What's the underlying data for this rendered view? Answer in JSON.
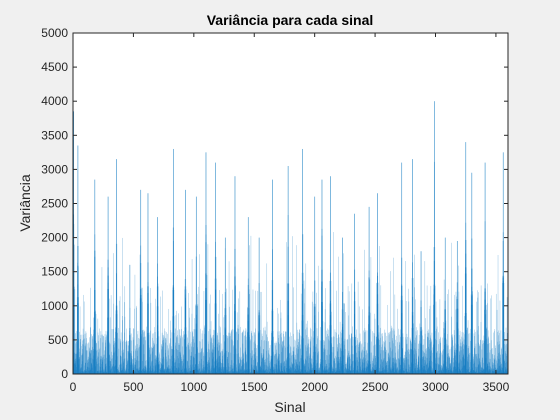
{
  "chart_data": {
    "type": "bar",
    "title": "Variância para cada sinal",
    "xlabel": "Sinal",
    "ylabel": "Variância",
    "xlim": [
      0,
      3600
    ],
    "ylim": [
      0,
      5000
    ],
    "x_ticks": [
      "0",
      "500",
      "1000",
      "1500",
      "2000",
      "2500",
      "3000",
      "3500"
    ],
    "y_ticks": [
      "0",
      "500",
      "1000",
      "1500",
      "2000",
      "2500",
      "3000",
      "3500",
      "4000",
      "4500",
      "5000"
    ],
    "grid": false,
    "bar_color": "#0072bd",
    "n_signals": 3600,
    "values_description": "Dense bars; most values below 1000, frequent spikes 1500–3300, max ≈ 4000 near Sinal 2990",
    "peaks": [
      {
        "x": 5,
        "y": 3850
      },
      {
        "x": 40,
        "y": 3350
      },
      {
        "x": 180,
        "y": 2850
      },
      {
        "x": 290,
        "y": 2600
      },
      {
        "x": 360,
        "y": 3150
      },
      {
        "x": 470,
        "y": 1600
      },
      {
        "x": 560,
        "y": 2700
      },
      {
        "x": 620,
        "y": 2650
      },
      {
        "x": 700,
        "y": 2300
      },
      {
        "x": 830,
        "y": 3300
      },
      {
        "x": 930,
        "y": 2700
      },
      {
        "x": 1020,
        "y": 2600
      },
      {
        "x": 1100,
        "y": 3250
      },
      {
        "x": 1180,
        "y": 3100
      },
      {
        "x": 1260,
        "y": 2000
      },
      {
        "x": 1340,
        "y": 2900
      },
      {
        "x": 1450,
        "y": 2300
      },
      {
        "x": 1540,
        "y": 2000
      },
      {
        "x": 1650,
        "y": 2850
      },
      {
        "x": 1780,
        "y": 3050
      },
      {
        "x": 1900,
        "y": 3300
      },
      {
        "x": 2000,
        "y": 2600
      },
      {
        "x": 2060,
        "y": 2850
      },
      {
        "x": 2130,
        "y": 2900
      },
      {
        "x": 2230,
        "y": 2000
      },
      {
        "x": 2330,
        "y": 2350
      },
      {
        "x": 2450,
        "y": 2450
      },
      {
        "x": 2520,
        "y": 2650
      },
      {
        "x": 2720,
        "y": 3100
      },
      {
        "x": 2810,
        "y": 3150
      },
      {
        "x": 2880,
        "y": 1800
      },
      {
        "x": 2990,
        "y": 4000
      },
      {
        "x": 3080,
        "y": 2000
      },
      {
        "x": 3180,
        "y": 1950
      },
      {
        "x": 3250,
        "y": 3400
      },
      {
        "x": 3300,
        "y": 2950
      },
      {
        "x": 3410,
        "y": 3100
      },
      {
        "x": 3560,
        "y": 3250
      }
    ]
  }
}
